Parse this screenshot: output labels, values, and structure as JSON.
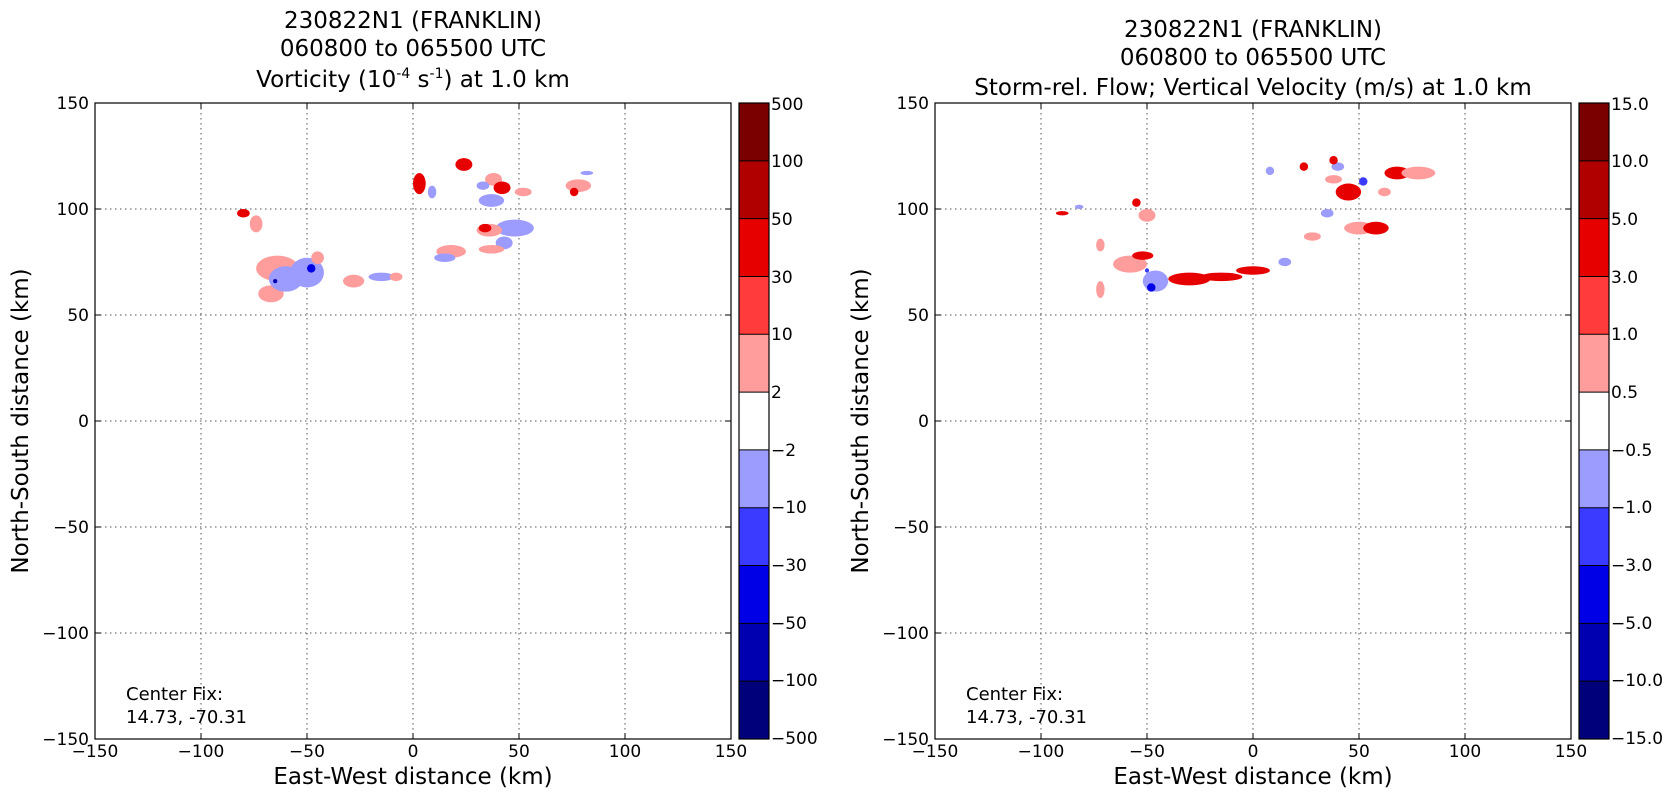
{
  "chart_data": [
    {
      "type": "heatmap",
      "title_lines": [
        "230822N1 (FRANKLIN)",
        "060800 to 065500 UTC"
      ],
      "title_line3": {
        "pre": "Vorticity (10",
        "sup1": "-4",
        "mid": " s",
        "sup2": "-1",
        "post": ") at 1.0 km"
      },
      "xlabel": "East-West distance (km)",
      "ylabel": "North-South distance (km)",
      "xlim": [
        -150,
        150
      ],
      "ylim": [
        -150,
        150
      ],
      "xticks": [
        "−150",
        "−100",
        "−50",
        "0",
        "50",
        "100",
        "150"
      ],
      "yticks": [
        "150",
        "100",
        "50",
        "0",
        "−50",
        "−100",
        "−150"
      ],
      "grid": true,
      "annotation": [
        "Center Fix:",
        "14.73, -70.31"
      ],
      "colorbar": {
        "labels": [
          "500",
          "100",
          "50",
          "30",
          "10",
          "2",
          "−2",
          "−10",
          "−30",
          "−50",
          "−100",
          "−500"
        ],
        "colors": [
          "#7a0000",
          "#b00000",
          "#e60000",
          "#ff3b3b",
          "#ff9c9c",
          "#ffffff",
          "#9c9cff",
          "#3b3bff",
          "#0000e6",
          "#0000b0",
          "#00007a"
        ]
      },
      "blobs": [
        {
          "x": -80,
          "y": 98,
          "level": 3,
          "rx": 3,
          "ry": 2
        },
        {
          "x": -74,
          "y": 93,
          "level": 1,
          "rx": 3,
          "ry": 4
        },
        {
          "x": -64,
          "y": 72,
          "level": 1,
          "rx": 10,
          "ry": 6
        },
        {
          "x": -67,
          "y": 60,
          "level": 1,
          "rx": 6,
          "ry": 4
        },
        {
          "x": -60,
          "y": 67,
          "level": -1,
          "rx": 8,
          "ry": 6
        },
        {
          "x": -50,
          "y": 70,
          "level": -1,
          "rx": 8,
          "ry": 7
        },
        {
          "x": -48,
          "y": 72,
          "level": -3,
          "rx": 2,
          "ry": 2
        },
        {
          "x": -65,
          "y": 66,
          "level": -4,
          "rx": 1,
          "ry": 1
        },
        {
          "x": -45,
          "y": 77,
          "level": 1,
          "rx": 3,
          "ry": 3
        },
        {
          "x": -28,
          "y": 66,
          "level": 1,
          "rx": 5,
          "ry": 3
        },
        {
          "x": -15,
          "y": 68,
          "level": -1,
          "rx": 6,
          "ry": 2
        },
        {
          "x": -8,
          "y": 68,
          "level": 1,
          "rx": 3,
          "ry": 2
        },
        {
          "x": 3,
          "y": 112,
          "level": 3,
          "rx": 3,
          "ry": 5
        },
        {
          "x": 9,
          "y": 108,
          "level": -1,
          "rx": 2,
          "ry": 3
        },
        {
          "x": 24,
          "y": 121,
          "level": 3,
          "rx": 4,
          "ry": 3
        },
        {
          "x": 38,
          "y": 114,
          "level": 1,
          "rx": 4,
          "ry": 3
        },
        {
          "x": 42,
          "y": 110,
          "level": 3,
          "rx": 4,
          "ry": 3
        },
        {
          "x": 33,
          "y": 111,
          "level": -1,
          "rx": 3,
          "ry": 2
        },
        {
          "x": 37,
          "y": 104,
          "level": -1,
          "rx": 6,
          "ry": 3
        },
        {
          "x": 52,
          "y": 108,
          "level": 1,
          "rx": 4,
          "ry": 2
        },
        {
          "x": 78,
          "y": 111,
          "level": 1,
          "rx": 6,
          "ry": 3
        },
        {
          "x": 76,
          "y": 108,
          "level": 3,
          "rx": 2,
          "ry": 2
        },
        {
          "x": 82,
          "y": 117,
          "level": -1,
          "rx": 3,
          "ry": 1
        },
        {
          "x": 48,
          "y": 91,
          "level": -1,
          "rx": 9,
          "ry": 4
        },
        {
          "x": 36,
          "y": 90,
          "level": 1,
          "rx": 6,
          "ry": 3
        },
        {
          "x": 34,
          "y": 91,
          "level": 3,
          "rx": 3,
          "ry": 2
        },
        {
          "x": 43,
          "y": 84,
          "level": -1,
          "rx": 4,
          "ry": 3
        },
        {
          "x": 37,
          "y": 81,
          "level": 1,
          "rx": 6,
          "ry": 2
        },
        {
          "x": 18,
          "y": 80,
          "level": 1,
          "rx": 7,
          "ry": 3
        },
        {
          "x": 15,
          "y": 77,
          "level": -1,
          "rx": 5,
          "ry": 2
        }
      ]
    },
    {
      "type": "heatmap",
      "title_lines": [
        "230822N1 (FRANKLIN)",
        "060800 to 065500 UTC",
        "Storm-rel. Flow; Vertical Velocity (m/s) at 1.0 km"
      ],
      "xlabel": "East-West distance (km)",
      "ylabel": "North-South distance (km)",
      "xlim": [
        -150,
        150
      ],
      "ylim": [
        -150,
        150
      ],
      "xticks": [
        "−150",
        "−100",
        "−50",
        "0",
        "50",
        "100",
        "150"
      ],
      "yticks": [
        "150",
        "100",
        "50",
        "0",
        "−50",
        "−100",
        "−150"
      ],
      "grid": true,
      "annotation": [
        "Center Fix:",
        "14.73, -70.31"
      ],
      "colorbar": {
        "labels": [
          "15.0",
          "10.0",
          "5.0",
          "3.0",
          "1.0",
          "0.5",
          "−0.5",
          "−1.0",
          "−3.0",
          "−5.0",
          "−10.0",
          "−15.0"
        ],
        "colors": [
          "#7a0000",
          "#b00000",
          "#e60000",
          "#ff3b3b",
          "#ff9c9c",
          "#ffffff",
          "#9c9cff",
          "#3b3bff",
          "#0000e6",
          "#0000b0",
          "#00007a"
        ]
      },
      "blobs": [
        {
          "x": -90,
          "y": 98,
          "level": 3,
          "rx": 3,
          "ry": 1
        },
        {
          "x": -82,
          "y": 101,
          "level": -1,
          "rx": 2,
          "ry": 1
        },
        {
          "x": -55,
          "y": 103,
          "level": 3,
          "rx": 2,
          "ry": 2
        },
        {
          "x": -50,
          "y": 97,
          "level": 1,
          "rx": 4,
          "ry": 3
        },
        {
          "x": -72,
          "y": 83,
          "level": 1,
          "rx": 2,
          "ry": 3
        },
        {
          "x": -72,
          "y": 62,
          "level": 1,
          "rx": 2,
          "ry": 4
        },
        {
          "x": -58,
          "y": 74,
          "level": 1,
          "rx": 8,
          "ry": 4
        },
        {
          "x": -52,
          "y": 78,
          "level": 3,
          "rx": 5,
          "ry": 2
        },
        {
          "x": -46,
          "y": 66,
          "level": -1,
          "rx": 6,
          "ry": 5
        },
        {
          "x": -50,
          "y": 71,
          "level": -2,
          "rx": 1,
          "ry": 1
        },
        {
          "x": -48,
          "y": 63,
          "level": -3,
          "rx": 2,
          "ry": 2
        },
        {
          "x": -30,
          "y": 67,
          "level": 3,
          "rx": 10,
          "ry": 3
        },
        {
          "x": -15,
          "y": 68,
          "level": 3,
          "rx": 10,
          "ry": 2
        },
        {
          "x": 0,
          "y": 71,
          "level": 3,
          "rx": 8,
          "ry": 2
        },
        {
          "x": 15,
          "y": 75,
          "level": -1,
          "rx": 3,
          "ry": 2
        },
        {
          "x": 28,
          "y": 87,
          "level": 1,
          "rx": 4,
          "ry": 2
        },
        {
          "x": 35,
          "y": 98,
          "level": -1,
          "rx": 3,
          "ry": 2
        },
        {
          "x": 50,
          "y": 91,
          "level": 1,
          "rx": 7,
          "ry": 3
        },
        {
          "x": 58,
          "y": 91,
          "level": 3,
          "rx": 6,
          "ry": 3
        },
        {
          "x": 40,
          "y": 120,
          "level": -1,
          "rx": 3,
          "ry": 2
        },
        {
          "x": 45,
          "y": 108,
          "level": 3,
          "rx": 6,
          "ry": 4
        },
        {
          "x": 38,
          "y": 114,
          "level": 1,
          "rx": 4,
          "ry": 2
        },
        {
          "x": 24,
          "y": 120,
          "level": 3,
          "rx": 2,
          "ry": 2
        },
        {
          "x": 38,
          "y": 123,
          "level": 3,
          "rx": 2,
          "ry": 2
        },
        {
          "x": 52,
          "y": 113,
          "level": -2,
          "rx": 2,
          "ry": 2
        },
        {
          "x": 68,
          "y": 117,
          "level": 3,
          "rx": 6,
          "ry": 3
        },
        {
          "x": 78,
          "y": 117,
          "level": 1,
          "rx": 8,
          "ry": 3
        },
        {
          "x": 62,
          "y": 108,
          "level": 1,
          "rx": 3,
          "ry": 2
        },
        {
          "x": 8,
          "y": 118,
          "level": -1,
          "rx": 2,
          "ry": 2
        }
      ]
    }
  ]
}
